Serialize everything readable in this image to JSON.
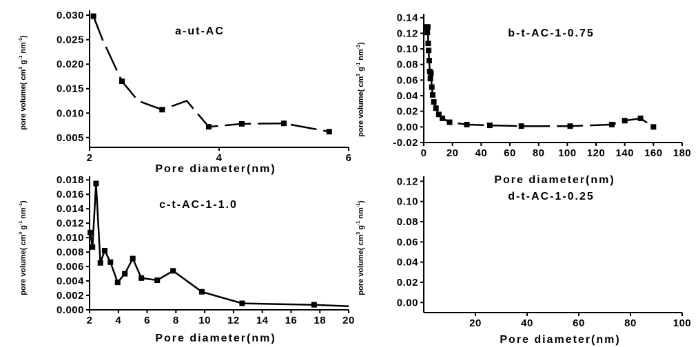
{
  "chart_data": [
    {
      "id": "a",
      "type": "line",
      "title": "a-ut-AC",
      "xlabel": "Pore diameter(nm)",
      "ylabel": "pore volume( cm3 g-1 nm-1)",
      "xlim": [
        2,
        6
      ],
      "ylim": [
        0.003,
        0.031
      ],
      "xticks": [
        2,
        4,
        6
      ],
      "xtick_labels": [
        "2",
        "4",
        "6"
      ],
      "yticks": [
        0.005,
        0.01,
        0.015,
        0.02,
        0.025,
        0.03
      ],
      "ytick_labels": [
        "0.005",
        "0.010",
        "0.015",
        "0.020",
        "0.025",
        "0.030"
      ],
      "x": [
        2.06,
        2.5,
        3.12,
        3.84,
        4.35,
        5.0,
        5.7
      ],
      "y": [
        0.0298,
        0.0165,
        0.0107,
        0.0072,
        0.0078,
        0.0079,
        0.0062
      ],
      "line_x": [
        2.06,
        2.2,
        2.5,
        2.75,
        3.12,
        3.5,
        3.84,
        4.35,
        5.0,
        5.7
      ],
      "line_y": [
        0.0298,
        0.025,
        0.0165,
        0.0125,
        0.0107,
        0.0125,
        0.0072,
        0.0078,
        0.0079,
        0.0062
      ],
      "dashed": true
    },
    {
      "id": "b",
      "type": "line",
      "title": "b-t-AC-1-0.75",
      "xlabel": "Pore diameter(nm)",
      "ylabel": "pore volume( cm3 g-1 nm-1)",
      "xlim": [
        0,
        180
      ],
      "ylim": [
        -0.02,
        0.145
      ],
      "xticks": [
        0,
        20,
        40,
        60,
        80,
        100,
        120,
        140,
        160,
        180
      ],
      "xtick_labels": [
        "0",
        "20",
        "40",
        "60",
        "80",
        "100",
        "120",
        "140",
        "160",
        "180"
      ],
      "yticks": [
        -0.02,
        0.0,
        0.02,
        0.04,
        0.06,
        0.08,
        0.1,
        0.12,
        0.14
      ],
      "ytick_labels": [
        "-0.02",
        "0.00",
        "0.02",
        "0.04",
        "0.06",
        "0.08",
        "0.10",
        "0.12",
        "0.14"
      ],
      "x": [
        2.2,
        2.5,
        2.8,
        3.1,
        3.4,
        3.8,
        4.2,
        4.6,
        5.0,
        5.6,
        6.2,
        7.0,
        8.5,
        10.5,
        13,
        18,
        30,
        46,
        68,
        102,
        131,
        140,
        151,
        160
      ],
      "y": [
        0.128,
        0.121,
        0.128,
        0.107,
        0.098,
        0.085,
        0.071,
        0.062,
        0.069,
        0.051,
        0.041,
        0.032,
        0.024,
        0.016,
        0.011,
        0.006,
        0.003,
        0.002,
        0.001,
        0.001,
        0.003,
        0.008,
        0.011,
        0.0
      ],
      "dashed": true
    },
    {
      "id": "c",
      "type": "line",
      "title": "c-t-AC-1-1.0",
      "xlabel": "Pore diameter(nm)",
      "ylabel": "pore volume( cm3 g-1 nm-1)",
      "xlim": [
        2,
        20
      ],
      "ylim": [
        0.0,
        0.0185
      ],
      "xticks": [
        2,
        4,
        6,
        8,
        10,
        12,
        14,
        16,
        18,
        20
      ],
      "xtick_labels": [
        "2",
        "4",
        "6",
        "8",
        "10",
        "12",
        "14",
        "16",
        "18",
        "20"
      ],
      "yticks": [
        0.0,
        0.002,
        0.004,
        0.006,
        0.008,
        0.01,
        0.012,
        0.014,
        0.016,
        0.018
      ],
      "ytick_labels": [
        "0.000",
        "0.002",
        "0.004",
        "0.006",
        "0.008",
        "0.010",
        "0.012",
        "0.014",
        "0.016",
        "0.018"
      ],
      "x": [
        2.05,
        2.2,
        2.45,
        2.75,
        3.05,
        3.45,
        3.95,
        4.45,
        5.0,
        5.6,
        6.7,
        7.8,
        9.8,
        12.6,
        17.6,
        20
      ],
      "y": [
        0.0107,
        0.0087,
        0.0175,
        0.0065,
        0.0082,
        0.0066,
        0.0038,
        0.005,
        0.0071,
        0.0044,
        0.0041,
        0.0054,
        0.0025,
        0.0009,
        0.0007,
        0.0005
      ],
      "markers_to_index": 14,
      "dashed": false
    },
    {
      "id": "d",
      "type": "line",
      "title": "d-t-AC-1-0.25",
      "xlabel": "Pore diameter(nm)",
      "ylabel": "pore volume( cm3 g-1 nm-1)",
      "xlim": [
        0,
        100
      ],
      "ylim": [
        -0.01,
        0.125
      ],
      "xticks": [
        20,
        40,
        60,
        80,
        100
      ],
      "xtick_labels": [
        "20",
        "40",
        "60",
        "80",
        "100"
      ],
      "yticks": [
        0.0,
        0.02,
        0.04,
        0.06,
        0.08,
        0.1,
        0.12
      ],
      "ytick_labels": [
        "0.00",
        "0.02",
        "0.04",
        "0.06",
        "0.08",
        "0.10",
        "0.12"
      ],
      "x": [],
      "y": [],
      "dashed": false
    }
  ],
  "ylabel_parts": {
    "prefix": "pore volume( cm",
    "sup1": "3",
    "mid": " g",
    "sup2": "-1",
    "end": " nm",
    "sup3": "-1",
    "close": ")"
  }
}
